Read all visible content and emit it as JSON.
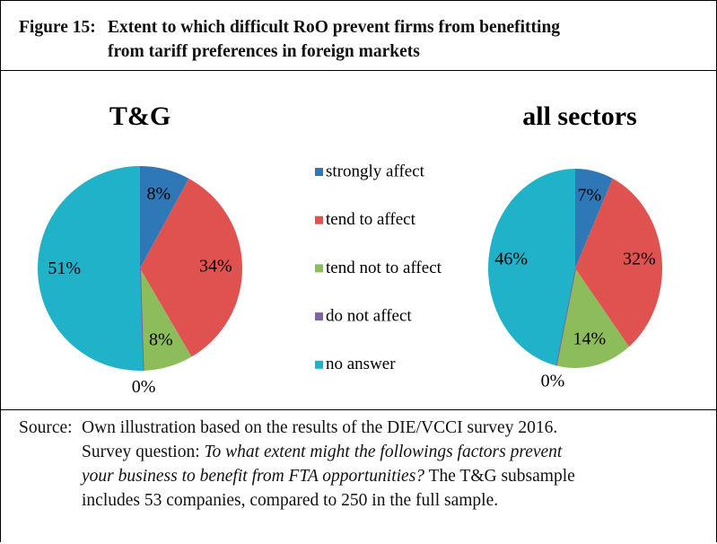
{
  "figure_label": "Figure 15:",
  "title_lines": [
    "Extent to which difficult RoO prevent firms from benefitting",
    "from tariff preferences in foreign markets"
  ],
  "chart_data": [
    {
      "type": "pie",
      "title": "T&G",
      "categories": [
        "strongly affect",
        "tend to affect",
        "tend not to affect",
        "do not affect",
        "no answer"
      ],
      "values": [
        8,
        34,
        8,
        0,
        51
      ],
      "value_labels": [
        "8%",
        "34%",
        "8%",
        "0%",
        "51%"
      ],
      "colors": [
        "#2e78b7",
        "#e0524f",
        "#8dbd5a",
        "#7e63a3",
        "#1fb2c9"
      ]
    },
    {
      "type": "pie",
      "title": "all sectors",
      "categories": [
        "strongly affect",
        "tend to affect",
        "tend not to affect",
        "do not affect",
        "no answer"
      ],
      "values": [
        7,
        32,
        14,
        0,
        46
      ],
      "value_labels": [
        "7%",
        "32%",
        "14%",
        "0%",
        "46%"
      ],
      "colors": [
        "#2e78b7",
        "#e0524f",
        "#8dbd5a",
        "#7e63a3",
        "#1fb2c9"
      ]
    }
  ],
  "source": {
    "label": "Source:",
    "lines": [
      [
        {
          "text": "Own illustration based on the results of the DIE/VCCI survey 2016."
        }
      ],
      [
        {
          "text": "Survey question: "
        },
        {
          "text": "To what extent might the followings factors prevent",
          "italic": true
        }
      ],
      [
        {
          "text": "your business to benefit from FTA opportunities?",
          "italic": true
        },
        {
          "text": " The T&G subsample"
        }
      ],
      [
        {
          "text": "includes 53 companies, compared to 250 in the full sample."
        }
      ]
    ]
  }
}
